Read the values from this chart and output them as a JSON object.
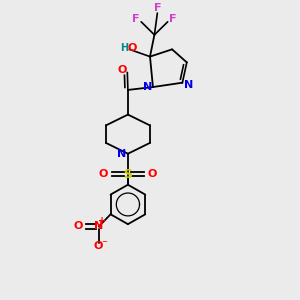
{
  "background_color": "#ebebeb",
  "fig_width": 3.0,
  "fig_height": 3.0,
  "dpi": 100,
  "xlim": [
    0.0,
    1.0
  ],
  "ylim": [
    0.0,
    1.0
  ]
}
